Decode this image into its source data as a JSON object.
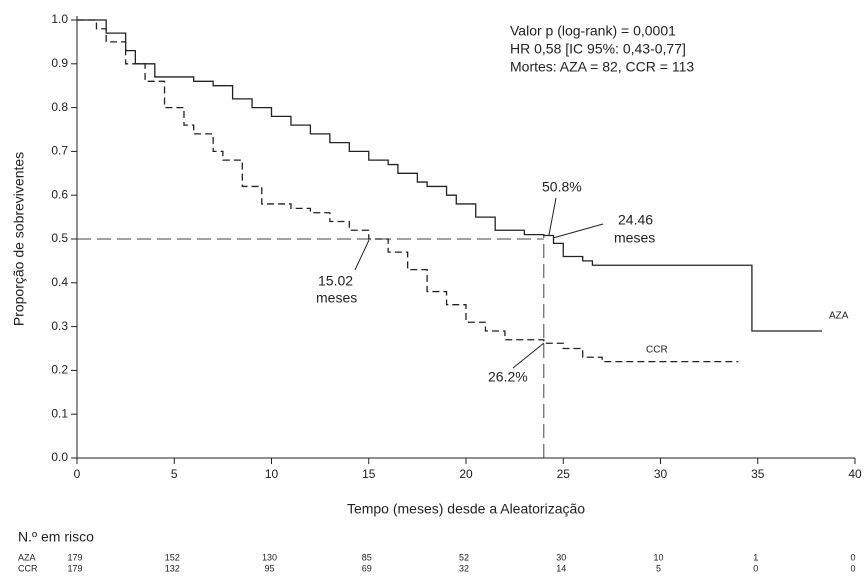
{
  "chart_data": {
    "type": "line",
    "drawstyle": "steps-post",
    "xlabel": "Tempo (meses) desde a Aleatorização",
    "ylabel": "Proporção de sobreviventes",
    "xlim": [
      0,
      40
    ],
    "ylim": [
      0,
      1
    ],
    "xticks": [
      0,
      5,
      10,
      15,
      20,
      25,
      30,
      35,
      40
    ],
    "yticks": [
      {
        "value": 0,
        "label": "0.0"
      },
      0.1,
      0.2,
      0.3,
      0.4,
      0.5,
      0.6,
      0.7,
      0.8,
      0.9,
      {
        "value": 1,
        "label": "1.0"
      }
    ],
    "series": [
      {
        "name": "AZA",
        "color": "#222222",
        "dash": false,
        "x": [
          0,
          1.5,
          2.5,
          3,
          4,
          6,
          7,
          8,
          9,
          10,
          11,
          12,
          13,
          14,
          15,
          16,
          16.5,
          17.5,
          18,
          19,
          19.5,
          20.5,
          21.5,
          23,
          24,
          24.5,
          25,
          26,
          26.5,
          34.7,
          38.3
        ],
        "values": [
          1.0,
          0.97,
          0.93,
          0.9,
          0.87,
          0.86,
          0.85,
          0.82,
          0.8,
          0.78,
          0.76,
          0.74,
          0.72,
          0.7,
          0.68,
          0.67,
          0.65,
          0.63,
          0.62,
          0.6,
          0.58,
          0.55,
          0.52,
          0.51,
          0.508,
          0.49,
          0.46,
          0.45,
          0.44,
          0.29,
          0.29
        ]
      },
      {
        "name": "CCR",
        "color": "#222222",
        "dash": true,
        "x": [
          0,
          1,
          1.5,
          2.5,
          3.5,
          4.5,
          5.5,
          6,
          7,
          7.5,
          8.5,
          9.5,
          11,
          12,
          13,
          14,
          15,
          16,
          17,
          18,
          19,
          20,
          21,
          22,
          24,
          25,
          26,
          27,
          34
        ],
        "values": [
          1.0,
          0.98,
          0.95,
          0.9,
          0.86,
          0.8,
          0.76,
          0.74,
          0.7,
          0.68,
          0.62,
          0.58,
          0.57,
          0.56,
          0.54,
          0.52,
          0.5,
          0.47,
          0.43,
          0.38,
          0.35,
          0.31,
          0.29,
          0.27,
          0.262,
          0.25,
          0.23,
          0.22,
          0.22
        ]
      }
    ],
    "reference_lines": {
      "y": 0.5,
      "x": 24
    },
    "annotations": {
      "stats": [
        "Valor p (log-rank) = 0,0001",
        "HR 0,58 [IC 95%: 0,43-0,77]",
        "Mortes: AZA = 82, CCR = 113"
      ],
      "aza_at_24": "50.8%",
      "aza_median": "24.46",
      "aza_median_unit": "meses",
      "ccr_median": "15.02",
      "ccr_median_unit": "meses",
      "ccr_at_24": "26.2%"
    },
    "risk_table": {
      "title": "N.º em risco",
      "rows": [
        {
          "name": "AZA",
          "values": [
            179,
            152,
            130,
            85,
            52,
            30,
            10,
            1,
            0
          ]
        },
        {
          "name": "CCR",
          "values": [
            179,
            132,
            95,
            69,
            32,
            14,
            5,
            0,
            0
          ]
        }
      ]
    }
  }
}
